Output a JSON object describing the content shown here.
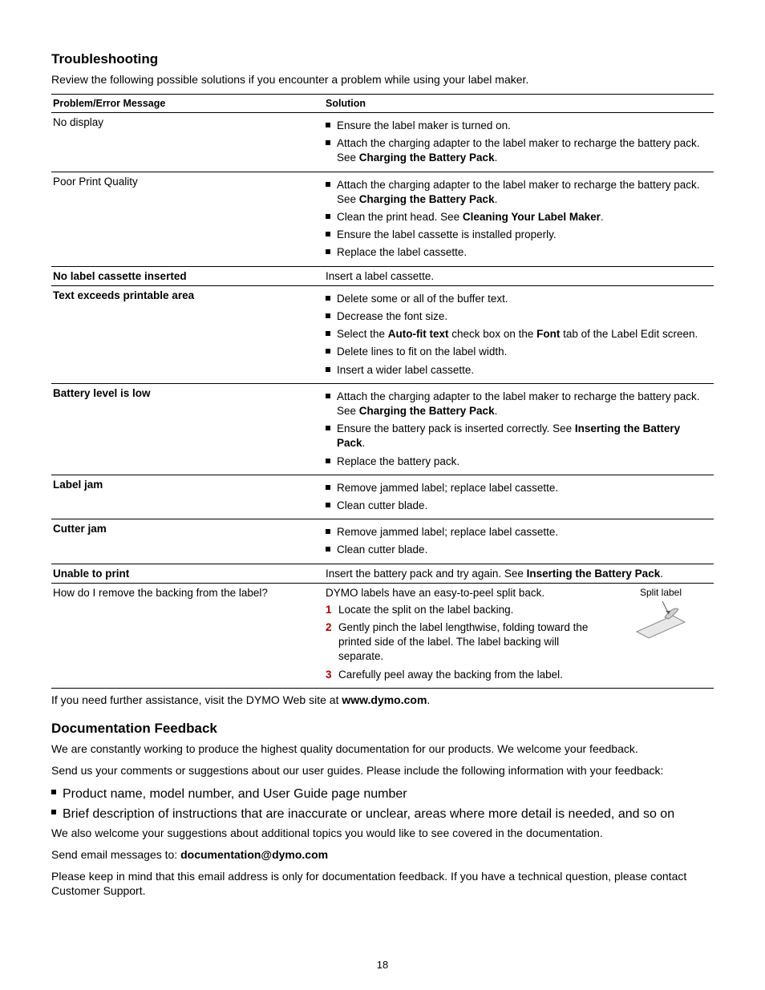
{
  "page_number": "18",
  "troubleshooting": {
    "heading": "Troubleshooting",
    "intro": "Review the following possible solutions if you encounter a problem while using your label maker.",
    "headers": {
      "problem": "Problem/Error Message",
      "solution": "Solution"
    },
    "rows": [
      {
        "problem": "No display",
        "type": "bullets",
        "items": [
          [
            {
              "t": "Ensure the label maker is turned on."
            }
          ],
          [
            {
              "t": "Attach the charging adapter to the label maker to recharge the battery pack. See "
            },
            {
              "t": "Charging the Battery Pack",
              "b": true
            },
            {
              "t": "."
            }
          ]
        ]
      },
      {
        "problem": "Poor Print Quality",
        "type": "bullets",
        "items": [
          [
            {
              "t": "Attach the charging adapter to the label maker to recharge the battery pack. See "
            },
            {
              "t": "Charging the Battery Pack",
              "b": true
            },
            {
              "t": "."
            }
          ],
          [
            {
              "t": "Clean the print head. See "
            },
            {
              "t": "Cleaning Your Label Maker",
              "b": true
            },
            {
              "t": "."
            }
          ],
          [
            {
              "t": "Ensure the label cassette is installed properly."
            }
          ],
          [
            {
              "t": "Replace the label cassette."
            }
          ]
        ]
      },
      {
        "problem": "No label cassette inserted",
        "problem_bold": true,
        "type": "plain",
        "plain": [
          {
            "t": "Insert a label cassette."
          }
        ]
      },
      {
        "problem": "Text exceeds printable area",
        "problem_bold": true,
        "type": "bullets",
        "items": [
          [
            {
              "t": "Delete some or all of the buffer text."
            }
          ],
          [
            {
              "t": "Decrease the font size."
            }
          ],
          [
            {
              "t": "Select the "
            },
            {
              "t": "Auto-fit text",
              "b": true
            },
            {
              "t": " check box on the "
            },
            {
              "t": "Font",
              "b": true
            },
            {
              "t": " tab of the Label Edit screen."
            }
          ],
          [
            {
              "t": "Delete lines to fit on the label width."
            }
          ],
          [
            {
              "t": "Insert a wider label cassette."
            }
          ]
        ]
      },
      {
        "problem": "Battery level is low",
        "problem_bold": true,
        "type": "bullets",
        "items": [
          [
            {
              "t": "Attach the charging adapter to the label maker to recharge the battery pack. See "
            },
            {
              "t": "Charging the Battery Pack",
              "b": true
            },
            {
              "t": "."
            }
          ],
          [
            {
              "t": "Ensure the battery pack is inserted correctly. See "
            },
            {
              "t": "Inserting the Battery Pack",
              "b": true
            },
            {
              "t": "."
            }
          ],
          [
            {
              "t": "Replace the battery pack."
            }
          ]
        ]
      },
      {
        "problem": "Label jam",
        "problem_bold": true,
        "type": "bullets",
        "items": [
          [
            {
              "t": "Remove jammed label; replace label cassette."
            }
          ],
          [
            {
              "t": "Clean cutter blade."
            }
          ]
        ]
      },
      {
        "problem": "Cutter jam",
        "problem_bold": true,
        "type": "bullets",
        "items": [
          [
            {
              "t": "Remove jammed label; replace label cassette."
            }
          ],
          [
            {
              "t": "Clean cutter blade."
            }
          ]
        ]
      },
      {
        "problem": "Unable to print",
        "problem_bold": true,
        "type": "plain",
        "plain": [
          {
            "t": "Insert the battery pack and try again. See "
          },
          {
            "t": "Inserting the Battery Pack",
            "b": true
          },
          {
            "t": "."
          }
        ]
      },
      {
        "problem": "How do I remove the backing from the label?",
        "type": "steps",
        "intro": [
          {
            "t": "DYMO labels have an easy-to-peel split back."
          }
        ],
        "steps": [
          [
            {
              "t": "Locate the split on the label backing."
            }
          ],
          [
            {
              "t": "Gently pinch the label lengthwise, folding toward the printed side of the label. The label backing will separate."
            }
          ],
          [
            {
              "t": "Carefully peel away the backing from the label."
            }
          ]
        ],
        "split_label_caption": "Split label"
      }
    ],
    "footer": [
      {
        "t": "If you need further assistance, visit the DYMO Web site at "
      },
      {
        "t": "www.dymo.com",
        "b": true
      },
      {
        "t": "."
      }
    ]
  },
  "feedback": {
    "heading": "Documentation Feedback",
    "p1": "We are constantly working to produce the highest quality documentation for our products. We welcome your feedback.",
    "p2": "Send us your comments or suggestions about our user guides. Please include the following information with your feedback:",
    "bullets": [
      [
        {
          "t": "Product name, model number, and User Guide page number"
        }
      ],
      [
        {
          "t": "Brief description of instructions that are inaccurate or unclear, areas where more detail is needed, and so on"
        }
      ]
    ],
    "p3": "We also welcome your suggestions about additional topics you would like to see covered in the documentation.",
    "p4": [
      {
        "t": "Send email messages to: "
      },
      {
        "t": "documentation@dymo.com",
        "b": true
      }
    ],
    "p5": "Please keep in mind that this email address is only for documentation feedback. If you have a technical question, please contact Customer Support."
  }
}
